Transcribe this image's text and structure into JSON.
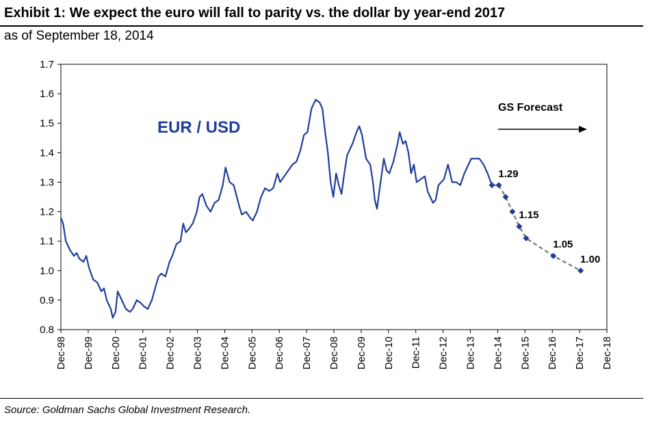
{
  "header": {
    "title": "Exhibit 1: We expect the euro will fall to parity vs. the dollar by year-end 2017",
    "subtitle": "as of September 18, 2014"
  },
  "footer": {
    "source": "Source: Goldman Sachs Global Investment Research."
  },
  "colors": {
    "history_line": "#1f3c99",
    "forecast_line": "#7f7f7f",
    "forecast_marker": "#1f3c99",
    "axis": "#000000"
  },
  "chart_data": {
    "type": "line",
    "title": "Exhibit 1: We expect the euro will fall to parity vs. the dollar by year-end 2017",
    "subtitle": "as of September 18, 2014",
    "xlabel": "",
    "ylabel": "",
    "ylim": [
      0.8,
      1.7
    ],
    "xlim": [
      1998.92,
      2018.92
    ],
    "grid": false,
    "y_ticks": [
      "0.8",
      "0.9",
      "1.0",
      "1.1",
      "1.2",
      "1.3",
      "1.4",
      "1.5",
      "1.6",
      "1.7"
    ],
    "x_ticks": [
      "Dec-98",
      "Dec-99",
      "Dec-00",
      "Dec-01",
      "Dec-02",
      "Dec-03",
      "Dec-04",
      "Dec-05",
      "Dec-06",
      "Dec-07",
      "Dec-08",
      "Dec-09",
      "Dec-10",
      "Dec-11",
      "Dec-12",
      "Dec-13",
      "Dec-14",
      "Dec-15",
      "Dec-16",
      "Dec-17",
      "Dec-18"
    ],
    "annotations": {
      "series_label": "EUR / USD",
      "forecast_label": "GS Forecast"
    },
    "series": [
      {
        "name": "EUR / USD",
        "style": "solid",
        "x": [
          1998.92,
          1999.0,
          1999.1,
          1999.25,
          1999.4,
          1999.5,
          1999.6,
          1999.75,
          1999.85,
          1999.95,
          2000.1,
          2000.25,
          2000.4,
          2000.5,
          2000.6,
          2000.75,
          2000.82,
          2000.92,
          2001.0,
          2001.15,
          2001.3,
          2001.45,
          2001.55,
          2001.7,
          2001.85,
          2001.95,
          2002.1,
          2002.25,
          2002.4,
          2002.5,
          2002.6,
          2002.75,
          2002.9,
          2003.0,
          2003.15,
          2003.3,
          2003.4,
          2003.5,
          2003.6,
          2003.75,
          2003.9,
          2004.0,
          2004.1,
          2004.25,
          2004.4,
          2004.55,
          2004.7,
          2004.85,
          2004.95,
          2005.1,
          2005.25,
          2005.45,
          2005.55,
          2005.7,
          2005.85,
          2005.95,
          2006.1,
          2006.25,
          2006.4,
          2006.55,
          2006.7,
          2006.85,
          2006.95,
          2007.1,
          2007.25,
          2007.4,
          2007.55,
          2007.7,
          2007.82,
          2007.95,
          2008.1,
          2008.25,
          2008.4,
          2008.5,
          2008.6,
          2008.7,
          2008.8,
          2008.9,
          2009.0,
          2009.1,
          2009.2,
          2009.3,
          2009.4,
          2009.5,
          2009.6,
          2009.75,
          2009.85,
          2009.95,
          2010.1,
          2010.25,
          2010.35,
          2010.42,
          2010.5,
          2010.6,
          2010.75,
          2010.85,
          2010.95,
          2011.1,
          2011.25,
          2011.33,
          2011.45,
          2011.55,
          2011.65,
          2011.75,
          2011.85,
          2011.95,
          2012.1,
          2012.25,
          2012.35,
          2012.45,
          2012.55,
          2012.65,
          2012.75,
          2012.85,
          2012.95,
          2013.1,
          2013.25,
          2013.4,
          2013.55,
          2013.7,
          2013.85,
          2013.95,
          2014.1,
          2014.25,
          2014.4,
          2014.55,
          2014.71
        ],
        "values": [
          1.18,
          1.16,
          1.1,
          1.07,
          1.05,
          1.06,
          1.04,
          1.03,
          1.05,
          1.01,
          0.97,
          0.96,
          0.93,
          0.94,
          0.9,
          0.87,
          0.84,
          0.86,
          0.93,
          0.9,
          0.87,
          0.86,
          0.87,
          0.9,
          0.89,
          0.88,
          0.87,
          0.9,
          0.95,
          0.98,
          0.99,
          0.98,
          1.03,
          1.05,
          1.09,
          1.1,
          1.16,
          1.13,
          1.14,
          1.16,
          1.2,
          1.25,
          1.26,
          1.22,
          1.2,
          1.23,
          1.24,
          1.29,
          1.35,
          1.3,
          1.29,
          1.22,
          1.19,
          1.2,
          1.18,
          1.17,
          1.2,
          1.25,
          1.28,
          1.27,
          1.28,
          1.33,
          1.3,
          1.32,
          1.34,
          1.36,
          1.37,
          1.41,
          1.46,
          1.47,
          1.55,
          1.58,
          1.57,
          1.55,
          1.47,
          1.4,
          1.3,
          1.25,
          1.33,
          1.29,
          1.26,
          1.33,
          1.39,
          1.41,
          1.43,
          1.47,
          1.49,
          1.46,
          1.38,
          1.36,
          1.3,
          1.24,
          1.21,
          1.28,
          1.38,
          1.34,
          1.33,
          1.37,
          1.43,
          1.47,
          1.43,
          1.44,
          1.4,
          1.33,
          1.36,
          1.3,
          1.31,
          1.32,
          1.27,
          1.25,
          1.23,
          1.24,
          1.29,
          1.3,
          1.31,
          1.36,
          1.3,
          1.3,
          1.29,
          1.33,
          1.36,
          1.38,
          1.38,
          1.38,
          1.36,
          1.33,
          1.29
        ]
      },
      {
        "name": "GS Forecast",
        "style": "dashed",
        "x": [
          2014.71,
          2014.96,
          2015.21,
          2015.46,
          2015.71,
          2015.96,
          2016.96,
          2017.96
        ],
        "values": [
          1.29,
          1.29,
          1.25,
          1.2,
          1.15,
          1.11,
          1.05,
          1.0
        ],
        "labels": [
          {
            "index": 1,
            "text": "1.29"
          },
          {
            "index": 4,
            "text": "1.15"
          },
          {
            "index": 6,
            "text": "1.05"
          },
          {
            "index": 7,
            "text": "1.00"
          }
        ]
      }
    ]
  }
}
